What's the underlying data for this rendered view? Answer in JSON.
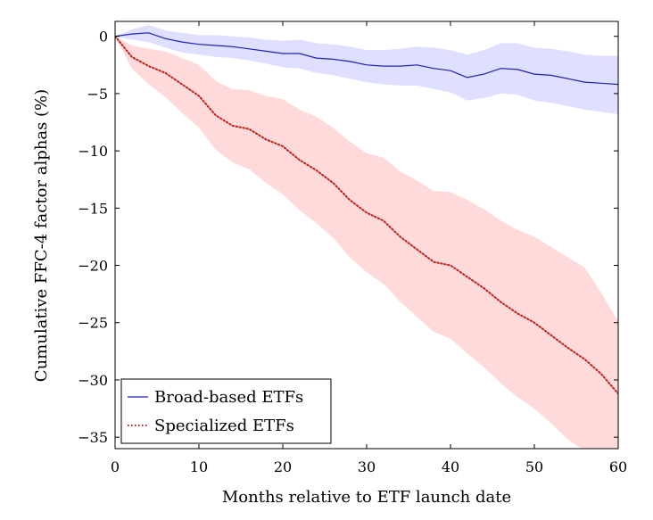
{
  "chart_data": {
    "type": "area",
    "title": "",
    "xlabel": "Months relative to ETF launch date",
    "ylabel": "Cumulative FFC-4 factor alphas (%)",
    "xlim": [
      0,
      60
    ],
    "ylim": [
      -36,
      1.3
    ],
    "xticks": [
      0,
      10,
      20,
      30,
      40,
      50,
      60
    ],
    "yticks": [
      0,
      -5,
      -10,
      -15,
      -20,
      -25,
      -30,
      -35
    ],
    "grid": false,
    "legend": "bottom-left",
    "x": [
      0,
      2,
      4,
      6,
      8,
      10,
      12,
      14,
      16,
      18,
      20,
      22,
      24,
      26,
      28,
      30,
      32,
      34,
      36,
      38,
      40,
      42,
      44,
      46,
      48,
      50,
      52,
      54,
      56,
      58,
      60
    ],
    "series": [
      {
        "name": "Broad-based ETFs",
        "color": "#1f1fb4",
        "band_color": "#dcdcff",
        "style": "solid",
        "values": [
          0,
          0.2,
          0.3,
          -0.2,
          -0.5,
          -0.7,
          -0.8,
          -0.9,
          -1.1,
          -1.3,
          -1.5,
          -1.5,
          -1.9,
          -2.0,
          -2.2,
          -2.5,
          -2.6,
          -2.6,
          -2.5,
          -2.8,
          -3.0,
          -3.6,
          -3.3,
          -2.8,
          -2.9,
          -3.3,
          -3.4,
          -3.7,
          -4.0,
          -4.1,
          -4.2
        ],
        "lower": [
          0,
          -0.3,
          -0.5,
          -1.0,
          -1.4,
          -1.6,
          -1.8,
          -1.9,
          -2.1,
          -2.4,
          -2.7,
          -2.8,
          -3.2,
          -3.4,
          -3.7,
          -4.0,
          -4.2,
          -4.3,
          -4.3,
          -4.6,
          -4.9,
          -5.6,
          -5.4,
          -5.0,
          -5.1,
          -5.6,
          -5.8,
          -6.1,
          -6.4,
          -6.6,
          -6.8
        ],
        "upper": [
          0,
          0.6,
          1.0,
          0.5,
          0.3,
          0.1,
          0.1,
          0.0,
          -0.1,
          -0.3,
          -0.4,
          -0.3,
          -0.6,
          -0.7,
          -0.9,
          -1.2,
          -1.2,
          -1.1,
          -0.9,
          -1.0,
          -1.2,
          -1.6,
          -1.2,
          -0.6,
          -0.6,
          -1.0,
          -1.1,
          -1.3,
          -1.6,
          -1.7,
          -1.7
        ]
      },
      {
        "name": "Specialized ETFs",
        "color": "#c0201c",
        "band_color": "#ffd6d6",
        "style": "dotted",
        "values": [
          0,
          -1.8,
          -2.6,
          -3.2,
          -4.2,
          -5.2,
          -6.9,
          -7.8,
          -8.1,
          -9.0,
          -9.6,
          -10.8,
          -11.7,
          -12.8,
          -14.3,
          -15.4,
          -16.1,
          -17.5,
          -18.6,
          -19.7,
          -20.0,
          -21.0,
          -22.0,
          -23.2,
          -24.2,
          -25.0,
          -26.1,
          -27.2,
          -28.2,
          -29.5,
          -31.2
        ],
        "lower": [
          0,
          -2.8,
          -4.2,
          -5.3,
          -6.7,
          -8.0,
          -9.9,
          -11.0,
          -11.6,
          -12.8,
          -13.8,
          -15.2,
          -16.3,
          -17.6,
          -19.3,
          -20.6,
          -21.6,
          -23.2,
          -24.5,
          -25.8,
          -26.4,
          -27.7,
          -28.9,
          -30.3,
          -31.5,
          -32.5,
          -33.8,
          -35.2,
          -36.2,
          -37.0,
          -37.5
        ],
        "upper": [
          0,
          -0.8,
          -1.1,
          -1.3,
          -1.9,
          -2.5,
          -3.9,
          -4.6,
          -4.7,
          -5.2,
          -5.5,
          -6.4,
          -7.0,
          -8.0,
          -9.2,
          -10.2,
          -10.6,
          -11.8,
          -12.6,
          -13.5,
          -13.6,
          -14.3,
          -15.1,
          -16.1,
          -16.9,
          -17.5,
          -18.4,
          -19.3,
          -20.2,
          -22.4,
          -24.9
        ]
      }
    ]
  }
}
